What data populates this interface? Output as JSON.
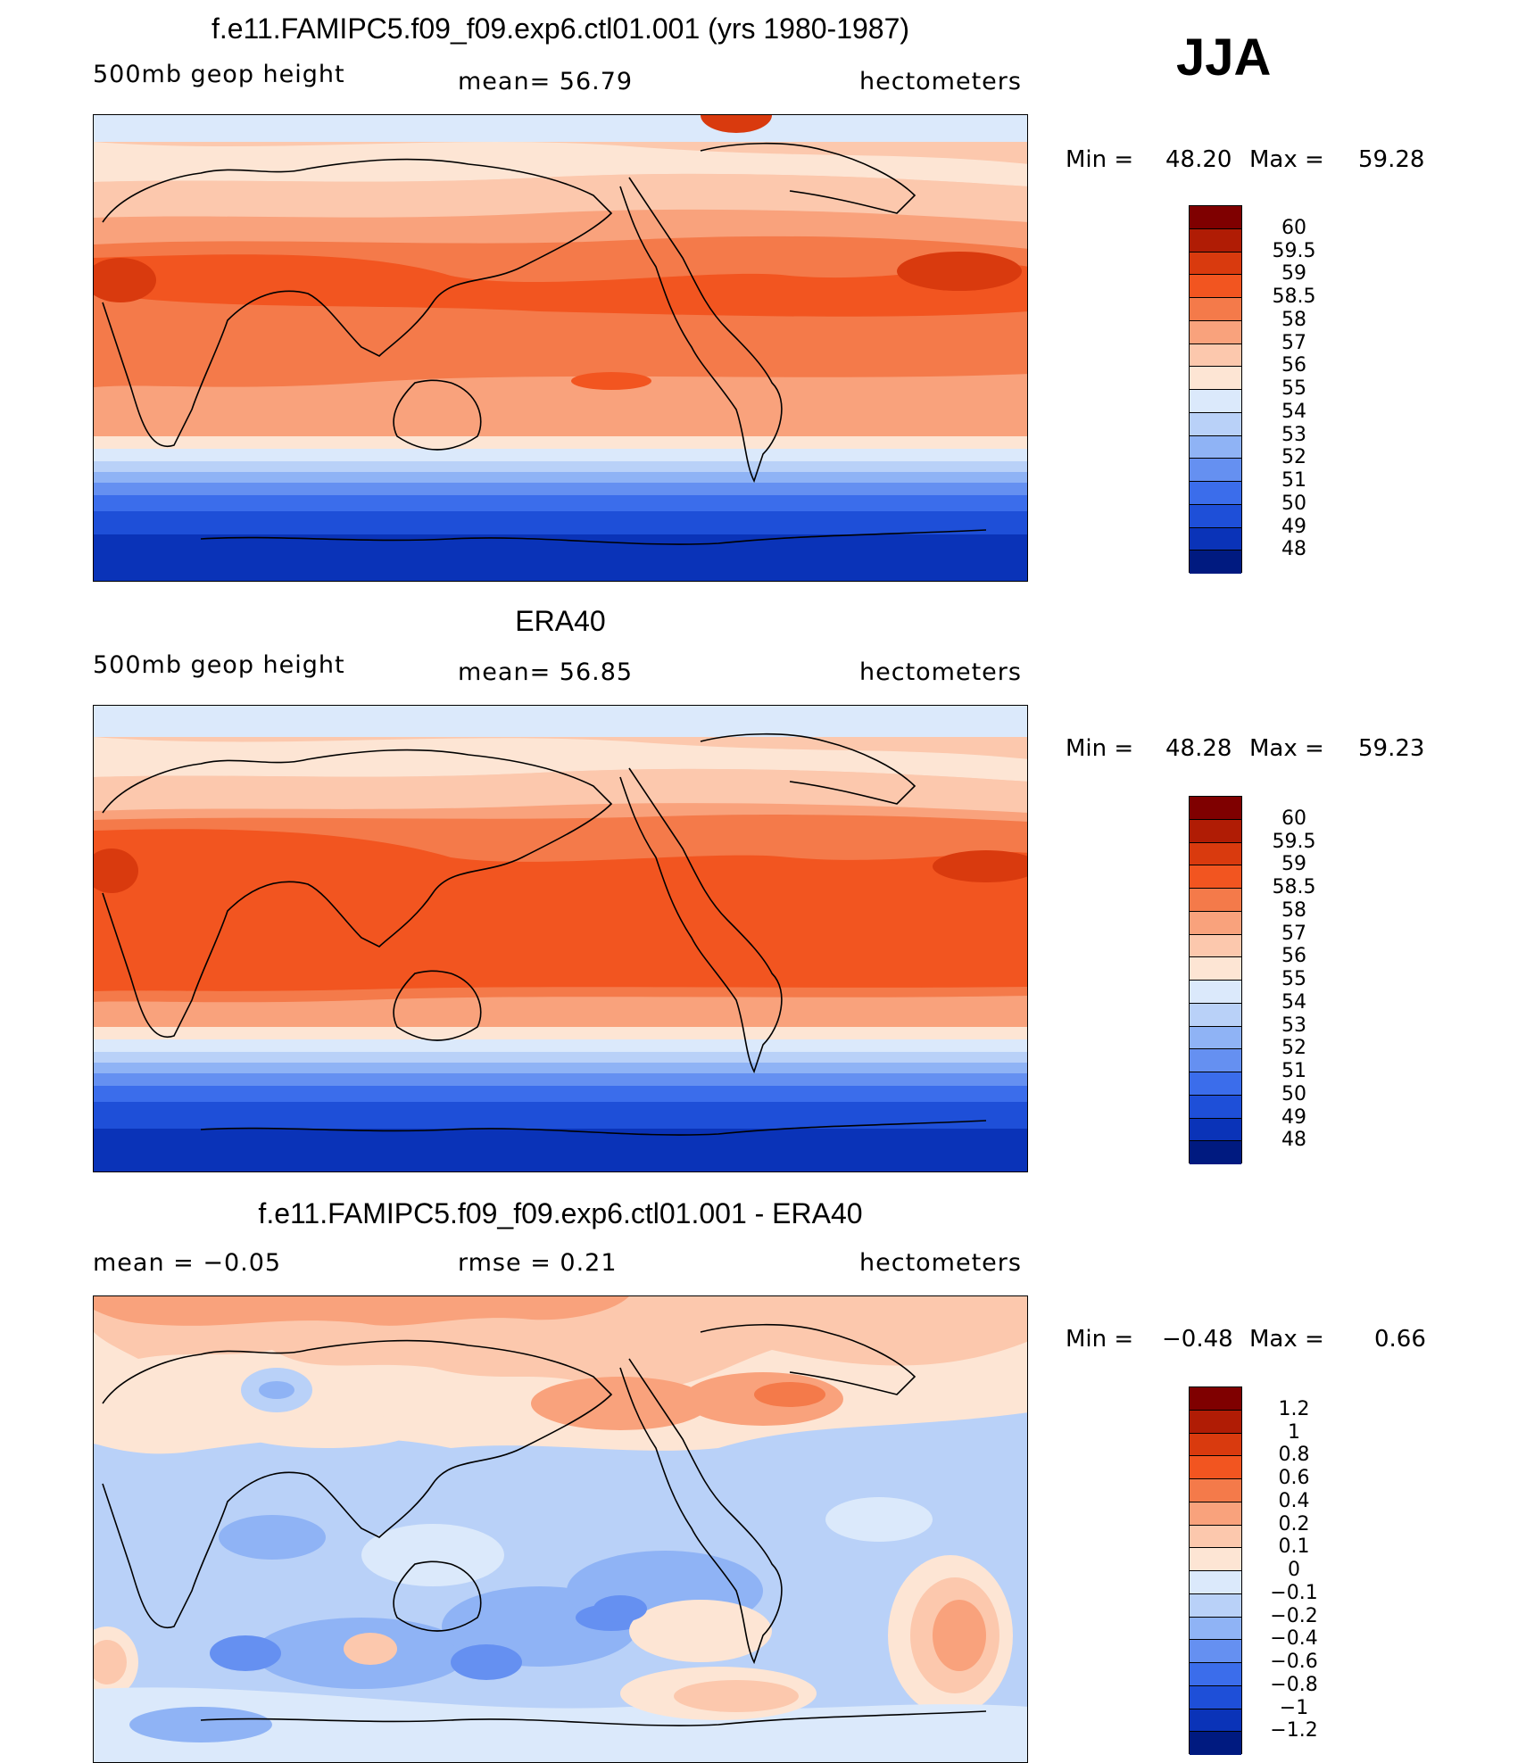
{
  "header": {
    "season": "JJA"
  },
  "panels": [
    {
      "title": "f.e11.FAMIPC5.f09_f09.exp6.ctl01.001 (yrs 1980-1987)",
      "left_label": "500mb  geop  height",
      "center_label": "mean=   56.79",
      "right_label": "hectometers",
      "min_label": "Min  =",
      "min_value": "48.20",
      "max_label": "Max  =",
      "max_value": "59.28",
      "field_type": "model-z500"
    },
    {
      "title": "ERA40",
      "left_label": "500mb  geop  height",
      "center_label": "mean=   56.85",
      "right_label": "hectometers",
      "min_label": "Min  =",
      "min_value": "48.28",
      "max_label": "Max  =",
      "max_value": "59.23",
      "field_type": "obs-z500"
    },
    {
      "title": "f.e11.FAMIPC5.f09_f09.exp6.ctl01.001 - ERA40",
      "left_label": "mean  =    −0.05",
      "center_label": "rmse  =     0.21",
      "right_label": "hectometers",
      "min_label": "Min  =",
      "min_value": "−0.48",
      "max_label": "Max  =",
      "max_value": "0.66",
      "field_type": "difference"
    }
  ],
  "colorbars": {
    "absolute": {
      "labels": [
        "60",
        "59.5",
        "59",
        "58.5",
        "58",
        "57",
        "56",
        "55",
        "54",
        "53",
        "52",
        "51",
        "50",
        "49",
        "48"
      ],
      "colors": [
        "#7f0000",
        "#b01c05",
        "#d93a0e",
        "#f25520",
        "#f47a4a",
        "#f9a27c",
        "#fcc8ad",
        "#fde5d4",
        "#dbe9fb",
        "#b9d1f8",
        "#8fb3f5",
        "#6590f1",
        "#3b6deb",
        "#1e4fd8",
        "#0a33b8",
        "#001a80"
      ]
    },
    "difference": {
      "labels": [
        "1.2",
        "1",
        "0.8",
        "0.6",
        "0.4",
        "0.2",
        "0.1",
        "0",
        "−0.1",
        "−0.2",
        "−0.4",
        "−0.6",
        "−0.8",
        "−1",
        "−1.2"
      ],
      "colors": [
        "#7f0000",
        "#b01c05",
        "#d93a0e",
        "#f25520",
        "#f47a4a",
        "#f9a27c",
        "#fcc8ad",
        "#fde5d4",
        "#dbe9fb",
        "#b9d1f8",
        "#8fb3f5",
        "#6590f1",
        "#3b6deb",
        "#1e4fd8",
        "#0a33b8",
        "#001a80"
      ]
    }
  }
}
